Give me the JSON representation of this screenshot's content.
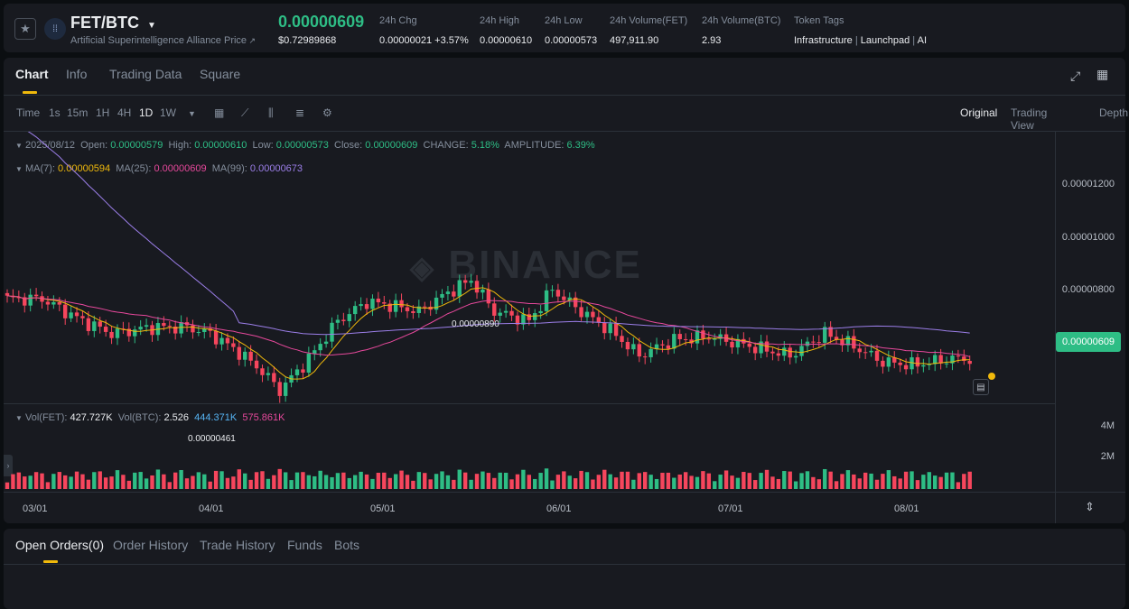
{
  "header": {
    "pair": "FET/BTC",
    "subtitle": "Artificial Superintelligence Alliance Price",
    "price": "0.00000609",
    "usd_price": "$0.72989868",
    "stats": [
      {
        "label": "24h Chg",
        "value": "0.00000021 +3.57%"
      },
      {
        "label": "24h High",
        "value": "0.00000610"
      },
      {
        "label": "24h Low",
        "value": "0.00000573"
      },
      {
        "label": "24h Volume(FET)",
        "value": "497,911.90"
      },
      {
        "label": "24h Volume(BTC)",
        "value": "2.93"
      }
    ],
    "tags_label": "Token Tags",
    "tags": [
      "Infrastructure",
      "Launchpad",
      "AI"
    ]
  },
  "tabs": [
    "Chart",
    "Info",
    "Trading Data",
    "Square"
  ],
  "toolbar": {
    "intervals": [
      "Time",
      "1s",
      "15m",
      "1H",
      "4H",
      "1D",
      "1W"
    ],
    "active_interval": "1D",
    "views": [
      "Original",
      "Trading View",
      "Depth"
    ]
  },
  "ohlc": {
    "date": "2025/08/12",
    "open_label": "Open:",
    "open": "0.00000579",
    "high_label": "High:",
    "high": "0.00000610",
    "low_label": "Low:",
    "low": "0.00000573",
    "close_label": "Close:",
    "close": "0.00000609",
    "change_label": "CHANGE:",
    "change": "5.18%",
    "amplitude_label": "AMPLITUDE:",
    "amplitude": "6.39%"
  },
  "ma": {
    "ma7_label": "MA(7):",
    "ma7": "0.00000594",
    "ma25_label": "MA(25):",
    "ma25": "0.00000609",
    "ma99_label": "MA(99):",
    "ma99": "0.00000673"
  },
  "volume_info": {
    "fet_label": "Vol(FET):",
    "fet": "427.727K",
    "btc_label": "Vol(BTC):",
    "btc": "2.526",
    "ma_a": "444.371K",
    "ma_b": "575.861K"
  },
  "watermark": "BINANCE",
  "colors": {
    "up": "#2ebd85",
    "down": "#f6465d",
    "ma7": "#f0b90b",
    "ma25": "#e6489b",
    "ma99": "#9b7ee8",
    "accent": "#f0b90b"
  },
  "chart_data": {
    "type": "candlestick",
    "x_ticks": [
      "03/01",
      "04/01",
      "05/01",
      "06/01",
      "07/01",
      "08/01"
    ],
    "y_ticks": [
      "0.00001200",
      "0.00001000",
      "0.00000800"
    ],
    "price_ylim": [
      4.2e-06,
      1.33e-05
    ],
    "current_price": "0.00000609",
    "annotations": {
      "high": "0.00000890",
      "low": "0.00000461"
    },
    "volume_ticks": [
      "4M",
      "2M"
    ],
    "volume_ylim": [
      0,
      4800000
    ]
  },
  "orders_tabs": [
    "Open Orders(0)",
    "Order History",
    "Trade History",
    "Funds",
    "Bots"
  ]
}
